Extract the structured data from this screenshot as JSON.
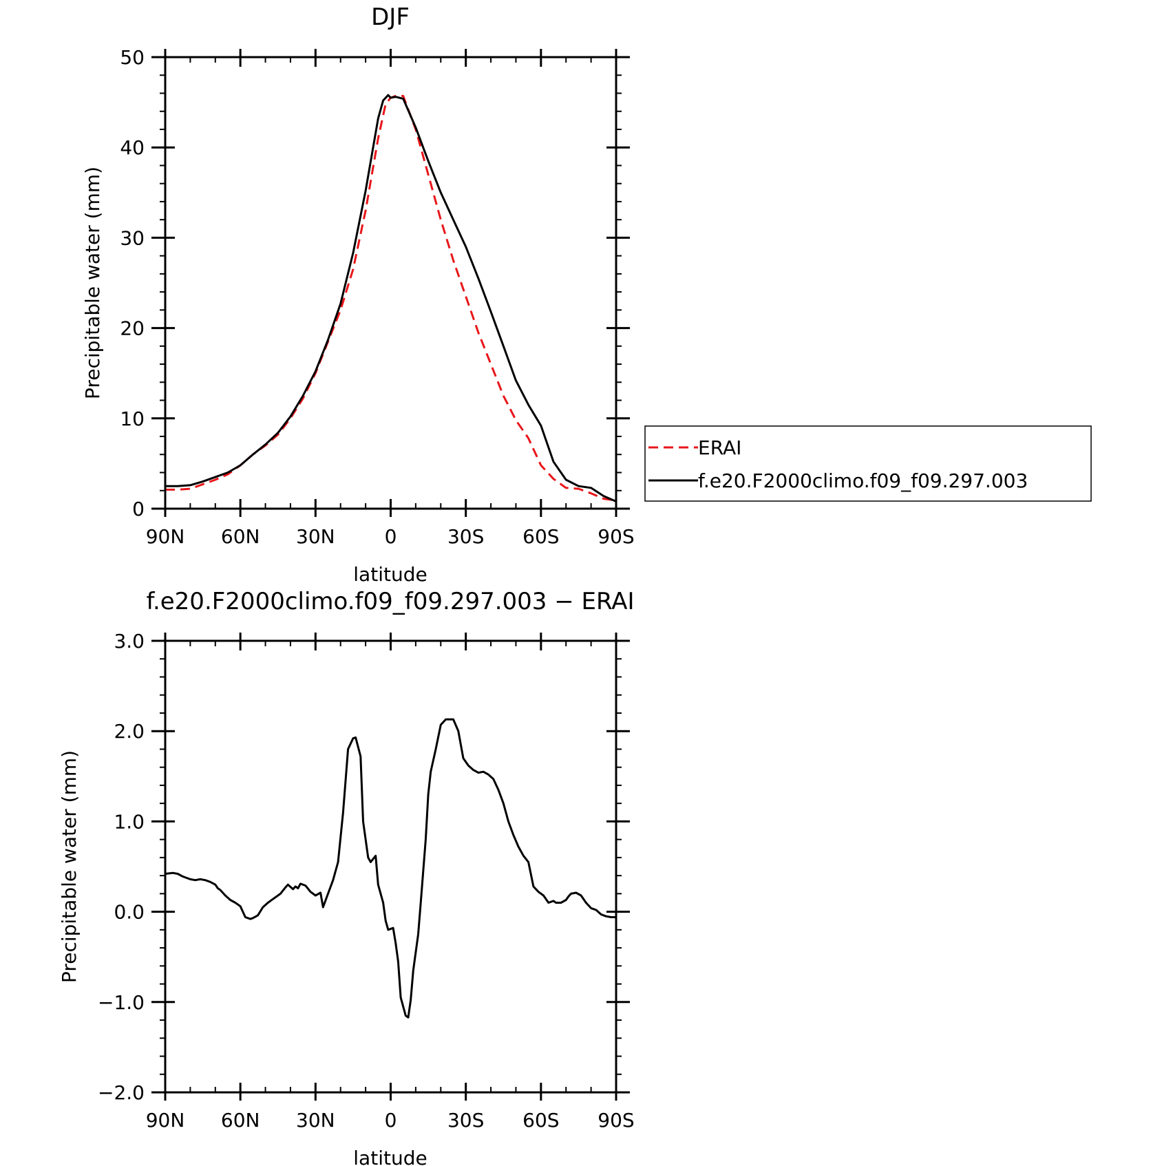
{
  "chart_data": [
    {
      "type": "line",
      "title": "DJF",
      "xlabel": "latitude",
      "ylabel": "Precipitable water (mm)",
      "xlim": [
        90,
        -90
      ],
      "ylim": [
        0,
        50
      ],
      "x_ticks": [
        {
          "value": 90,
          "label": "90N"
        },
        {
          "value": 60,
          "label": "60N"
        },
        {
          "value": 30,
          "label": "30N"
        },
        {
          "value": 0,
          "label": "0"
        },
        {
          "value": -30,
          "label": "30S"
        },
        {
          "value": -60,
          "label": "60S"
        },
        {
          "value": -90,
          "label": "90S"
        }
      ],
      "y_ticks": [
        {
          "value": 0,
          "label": "0"
        },
        {
          "value": 10,
          "label": "10"
        },
        {
          "value": 20,
          "label": "20"
        },
        {
          "value": 30,
          "label": "30"
        },
        {
          "value": 40,
          "label": "40"
        },
        {
          "value": 50,
          "label": "50"
        }
      ],
      "x_minor_step": 10,
      "y_minor_step": 2,
      "legend": {
        "placement": "right"
      },
      "series": [
        {
          "name": "ERAI",
          "color": "#e8161a",
          "dash": true,
          "x": [
            90,
            85,
            80,
            75,
            70,
            65,
            60,
            55,
            50,
            45,
            40,
            35,
            30,
            25,
            20,
            15,
            10,
            5,
            2,
            0,
            -2,
            -5,
            -10,
            -15,
            -20,
            -25,
            -30,
            -35,
            -40,
            -45,
            -50,
            -55,
            -60,
            -65,
            -70,
            -75,
            -80,
            -85,
            -90
          ],
          "y": [
            2.1,
            2.1,
            2.2,
            2.7,
            3.2,
            3.8,
            4.8,
            6.0,
            7.0,
            8.2,
            10.0,
            12.2,
            15.0,
            18.5,
            22.0,
            26.5,
            33.0,
            41.0,
            44.8,
            45.5,
            45.7,
            45.7,
            42.0,
            37.0,
            32.0,
            27.5,
            23.5,
            19.5,
            16.0,
            12.5,
            9.8,
            7.8,
            4.8,
            3.3,
            2.3,
            2.2,
            1.7,
            1.1,
            0.9
          ]
        },
        {
          "name": "f.e20.F2000climo.f09_f09.297.003",
          "color": "#000000",
          "dash": false,
          "x": [
            90,
            85,
            80,
            75,
            70,
            65,
            60,
            55,
            50,
            45,
            40,
            35,
            30,
            25,
            20,
            15,
            10,
            5,
            3,
            1,
            0,
            -2,
            -5,
            -10,
            -15,
            -20,
            -25,
            -30,
            -35,
            -40,
            -45,
            -50,
            -55,
            -60,
            -65,
            -70,
            -75,
            -80,
            -85,
            -90
          ],
          "y": [
            2.5,
            2.5,
            2.6,
            3.0,
            3.5,
            4.0,
            4.8,
            6.0,
            7.1,
            8.4,
            10.2,
            12.5,
            15.2,
            18.7,
            22.7,
            28.3,
            35.2,
            43.2,
            45.2,
            45.8,
            45.5,
            45.6,
            45.4,
            42.2,
            38.5,
            35.0,
            32.0,
            29.0,
            25.5,
            21.8,
            18.0,
            14.2,
            11.5,
            9.2,
            5.2,
            3.2,
            2.5,
            2.3,
            1.4,
            0.8
          ]
        }
      ]
    },
    {
      "type": "line",
      "title": "f.e20.F2000climo.f09_f09.297.003 − ERAI",
      "xlabel": "latitude",
      "ylabel": "Precipitable water (mm)",
      "xlim": [
        90,
        -90
      ],
      "ylim": [
        -2.0,
        3.0
      ],
      "x_ticks": [
        {
          "value": 90,
          "label": "90N"
        },
        {
          "value": 60,
          "label": "60N"
        },
        {
          "value": 30,
          "label": "30N"
        },
        {
          "value": 0,
          "label": "0"
        },
        {
          "value": -30,
          "label": "30S"
        },
        {
          "value": -60,
          "label": "60S"
        },
        {
          "value": -90,
          "label": "90S"
        }
      ],
      "y_ticks": [
        {
          "value": -2.0,
          "label": "−2.0"
        },
        {
          "value": -1.0,
          "label": "−1.0"
        },
        {
          "value": 0.0,
          "label": "0.0"
        },
        {
          "value": 1.0,
          "label": "1.0"
        },
        {
          "value": 2.0,
          "label": "2.0"
        },
        {
          "value": 3.0,
          "label": "3.0"
        }
      ],
      "x_minor_step": 10,
      "y_minor_step": 0.2,
      "series": [
        {
          "color": "#000000",
          "dash": false,
          "x": [
            90,
            87,
            85,
            83,
            80,
            78,
            76,
            74,
            72,
            70,
            69,
            68,
            66,
            64,
            62,
            60,
            58,
            56,
            55,
            53,
            51,
            49,
            47,
            45,
            44,
            42,
            41,
            39,
            38,
            37,
            36,
            34,
            32,
            30,
            28,
            27,
            25,
            23,
            21,
            19,
            17,
            15,
            14,
            12,
            11,
            9,
            8,
            6,
            5,
            3,
            2,
            1,
            -1,
            -2,
            -3,
            -4,
            -6,
            -7,
            -8,
            -9,
            -11,
            -12,
            -14,
            -15,
            -16,
            -18,
            -20,
            -22,
            -25,
            -27,
            -28,
            -29,
            -31,
            -33,
            -35,
            -37,
            -39,
            -41,
            -43,
            -45,
            -47,
            -49,
            -51,
            -53,
            -55,
            -57,
            -59,
            -61,
            -63,
            -65,
            -66,
            -68,
            -70,
            -71,
            -72,
            -74,
            -76,
            -78,
            -80,
            -82,
            -84,
            -86,
            -88,
            -90
          ],
          "y": [
            0.42,
            0.43,
            0.42,
            0.39,
            0.36,
            0.35,
            0.36,
            0.35,
            0.33,
            0.3,
            0.26,
            0.24,
            0.18,
            0.13,
            0.1,
            0.06,
            -0.06,
            -0.08,
            -0.07,
            -0.04,
            0.05,
            0.1,
            0.14,
            0.18,
            0.2,
            0.27,
            0.3,
            0.25,
            0.28,
            0.26,
            0.31,
            0.29,
            0.22,
            0.18,
            0.21,
            0.05,
            0.2,
            0.35,
            0.55,
            1.1,
            1.8,
            1.92,
            1.93,
            1.72,
            1.0,
            0.6,
            0.55,
            0.62,
            0.3,
            0.1,
            -0.1,
            -0.2,
            -0.18,
            -0.35,
            -0.55,
            -0.95,
            -1.15,
            -1.17,
            -0.98,
            -0.65,
            -0.25,
            0.1,
            0.8,
            1.3,
            1.55,
            1.8,
            2.07,
            2.13,
            2.13,
            2.0,
            1.85,
            1.7,
            1.62,
            1.57,
            1.54,
            1.55,
            1.52,
            1.47,
            1.35,
            1.2,
            1.0,
            0.85,
            0.72,
            0.62,
            0.55,
            0.28,
            0.22,
            0.18,
            0.1,
            0.12,
            0.1,
            0.1,
            0.13,
            0.17,
            0.2,
            0.21,
            0.18,
            0.1,
            0.04,
            0.02,
            -0.03,
            -0.05,
            -0.06,
            -0.06
          ]
        }
      ]
    }
  ]
}
